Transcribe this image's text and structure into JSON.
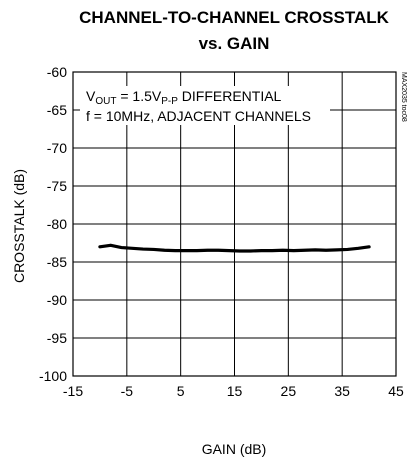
{
  "chart_data": {
    "type": "line",
    "title": "CHANNEL-TO-CHANNEL CROSSTALK",
    "subtitle": "vs. GAIN",
    "xlabel": "GAIN (dB)",
    "ylabel": "CROSSTALK (dB)",
    "xlim": [
      -15,
      45
    ],
    "ylim": [
      -100,
      -60
    ],
    "xticks": [
      "-15",
      "-5",
      "5",
      "15",
      "25",
      "35",
      "45"
    ],
    "yticks": [
      "-60",
      "-65",
      "-70",
      "-75",
      "-80",
      "-85",
      "-90",
      "-95",
      "-100"
    ],
    "grid": true,
    "annotation": {
      "line1_main": "V",
      "line1_sub1": "OUT",
      "line1_mid": " = 1.5V",
      "line1_sub2": "P-P",
      "line1_end": " DIFFERENTIAL",
      "line2": "f = 10MHz, ADJACENT CHANNELS"
    },
    "side_label": "MAX2035 toc08",
    "series": [
      {
        "x": [
          -10,
          -8,
          -6,
          -4,
          -2,
          0,
          2,
          4,
          6,
          8,
          10,
          12,
          14,
          16,
          18,
          20,
          22,
          24,
          26,
          28,
          30,
          32,
          34,
          36,
          38,
          40
        ],
        "y": [
          -83.0,
          -82.8,
          -83.1,
          -83.2,
          -83.3,
          -83.35,
          -83.45,
          -83.5,
          -83.5,
          -83.5,
          -83.45,
          -83.45,
          -83.5,
          -83.55,
          -83.55,
          -83.5,
          -83.5,
          -83.45,
          -83.5,
          -83.45,
          -83.4,
          -83.45,
          -83.4,
          -83.35,
          -83.2,
          -83.0
        ]
      }
    ]
  }
}
